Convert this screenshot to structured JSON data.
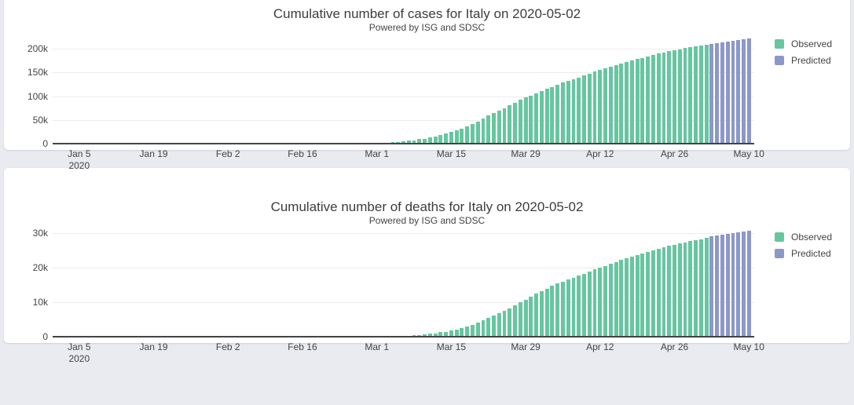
{
  "page": {
    "background_color": "#e9ebf1",
    "card_color": "#ffffff"
  },
  "chart_data": [
    {
      "type": "bar",
      "title": "Cumulative number of cases for Italy on 2020-05-02",
      "subtitle": "Powered by ISG and SDSC",
      "legend_position": "right",
      "grid": true,
      "xlabel": "",
      "ylabel": "",
      "xlim": [
        "2019-12-31",
        "2020-05-11"
      ],
      "ylim": [
        0,
        232000
      ],
      "yticks": [
        {
          "v": 0,
          "label": "0"
        },
        {
          "v": 50000,
          "label": "50k"
        },
        {
          "v": 100000,
          "label": "100k"
        },
        {
          "v": 150000,
          "label": "150k"
        },
        {
          "v": 200000,
          "label": "200k"
        }
      ],
      "xticks": [
        {
          "date": "2020-01-05",
          "label": "Jan 5",
          "sublabel": "2020"
        },
        {
          "date": "2020-01-19",
          "label": "Jan 19"
        },
        {
          "date": "2020-02-02",
          "label": "Feb 2"
        },
        {
          "date": "2020-02-16",
          "label": "Feb 16"
        },
        {
          "date": "2020-03-01",
          "label": "Mar 1"
        },
        {
          "date": "2020-03-15",
          "label": "Mar 15"
        },
        {
          "date": "2020-03-29",
          "label": "Mar 29"
        },
        {
          "date": "2020-04-12",
          "label": "Apr 12"
        },
        {
          "date": "2020-04-26",
          "label": "Apr 26"
        },
        {
          "date": "2020-05-10",
          "label": "May 10"
        }
      ],
      "series": [
        {
          "name": "Observed",
          "color": "#66c6a0",
          "start_date": "2020-01-31",
          "values": [
            2,
            2,
            2,
            2,
            2,
            2,
            2,
            3,
            3,
            3,
            3,
            3,
            3,
            3,
            3,
            3,
            3,
            3,
            3,
            3,
            3,
            20,
            62,
            155,
            229,
            322,
            453,
            655,
            888,
            1128,
            1694,
            2036,
            2502,
            3089,
            3858,
            4636,
            5883,
            7375,
            9172,
            10149,
            12462,
            15113,
            17660,
            21157,
            24747,
            27980,
            31506,
            35713,
            41035,
            47021,
            53578,
            59138,
            63927,
            69176,
            74386,
            80589,
            86498,
            92472,
            97689,
            101739,
            105792,
            110574,
            115242,
            119827,
            124632,
            128948,
            132547,
            135586,
            139422,
            143626,
            147577,
            152271,
            156363,
            159516,
            162488,
            165155,
            168941,
            172434,
            175925,
            178972,
            181228,
            183957,
            187327,
            189973,
            192994,
            195351,
            197675,
            199414,
            201505,
            203591,
            205463,
            207428,
            209328
          ]
        },
        {
          "name": "Predicted",
          "color": "#8c98c8",
          "start_date": "2020-05-03",
          "values": [
            211100,
            212800,
            214400,
            215900,
            217400,
            218800,
            220100,
            221400
          ]
        }
      ]
    },
    {
      "type": "bar",
      "title": "Cumulative number of deaths for Italy on 2020-05-02",
      "subtitle": "Powered by ISG and SDSC",
      "legend_position": "right",
      "grid": true,
      "xlabel": "",
      "ylabel": "",
      "xlim": [
        "2019-12-31",
        "2020-05-11"
      ],
      "ylim": [
        0,
        31800
      ],
      "yticks": [
        {
          "v": 0,
          "label": "0"
        },
        {
          "v": 10000,
          "label": "10k"
        },
        {
          "v": 20000,
          "label": "20k"
        },
        {
          "v": 30000,
          "label": "30k"
        }
      ],
      "xticks": [
        {
          "date": "2020-01-05",
          "label": "Jan 5",
          "sublabel": "2020"
        },
        {
          "date": "2020-01-19",
          "label": "Jan 19"
        },
        {
          "date": "2020-02-02",
          "label": "Feb 2"
        },
        {
          "date": "2020-02-16",
          "label": "Feb 16"
        },
        {
          "date": "2020-03-01",
          "label": "Mar 1"
        },
        {
          "date": "2020-03-15",
          "label": "Mar 15"
        },
        {
          "date": "2020-03-29",
          "label": "Mar 29"
        },
        {
          "date": "2020-04-12",
          "label": "Apr 12"
        },
        {
          "date": "2020-04-26",
          "label": "Apr 26"
        },
        {
          "date": "2020-05-10",
          "label": "May 10"
        }
      ],
      "series": [
        {
          "name": "Observed",
          "color": "#66c6a0",
          "start_date": "2020-02-21",
          "values": [
            1,
            2,
            3,
            7,
            10,
            12,
            17,
            21,
            29,
            34,
            52,
            79,
            107,
            148,
            197,
            233,
            366,
            463,
            631,
            827,
            1016,
            1266,
            1441,
            1809,
            2158,
            2503,
            2978,
            3405,
            4032,
            4825,
            5476,
            6077,
            6820,
            7503,
            8215,
            9134,
            10023,
            10779,
            11591,
            12428,
            13155,
            13915,
            14681,
            15362,
            15887,
            16523,
            17127,
            17669,
            18279,
            18849,
            19468,
            19899,
            20465,
            21067,
            21645,
            22170,
            22745,
            23227,
            23660,
            24114,
            24648,
            25085,
            25549,
            25969,
            26384,
            26644,
            26977,
            27359,
            27682,
            27967,
            28236,
            28710
          ]
        },
        {
          "name": "Predicted",
          "color": "#8c98c8",
          "start_date": "2020-05-03",
          "values": [
            28980,
            29260,
            29520,
            29760,
            29990,
            30200,
            30400,
            30590
          ]
        }
      ]
    }
  ]
}
